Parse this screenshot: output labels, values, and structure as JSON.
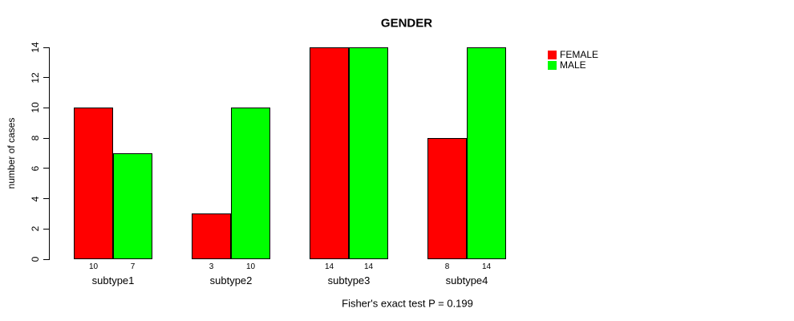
{
  "chart_data": {
    "type": "bar",
    "title": "GENDER",
    "xlabel": "",
    "ylabel": "number of cases",
    "categories": [
      "subtype1",
      "subtype2",
      "subtype3",
      "subtype4"
    ],
    "series": [
      {
        "name": "FEMALE",
        "color": "#ff0000",
        "values": [
          10,
          3,
          14,
          8
        ]
      },
      {
        "name": "MALE",
        "color": "#00ff00",
        "values": [
          7,
          10,
          14,
          14
        ]
      }
    ],
    "bar_value_labels": [
      [
        10,
        7
      ],
      [
        3,
        10
      ],
      [
        14,
        14
      ],
      [
        8,
        14
      ]
    ],
    "yticks": [
      0,
      2,
      4,
      6,
      8,
      10,
      12,
      14
    ],
    "ylim": [
      0,
      14
    ],
    "grid": false,
    "legend_position": "top-right",
    "bar_border_color": "#000000",
    "caption": "Fisher's exact test P = 0.199"
  }
}
